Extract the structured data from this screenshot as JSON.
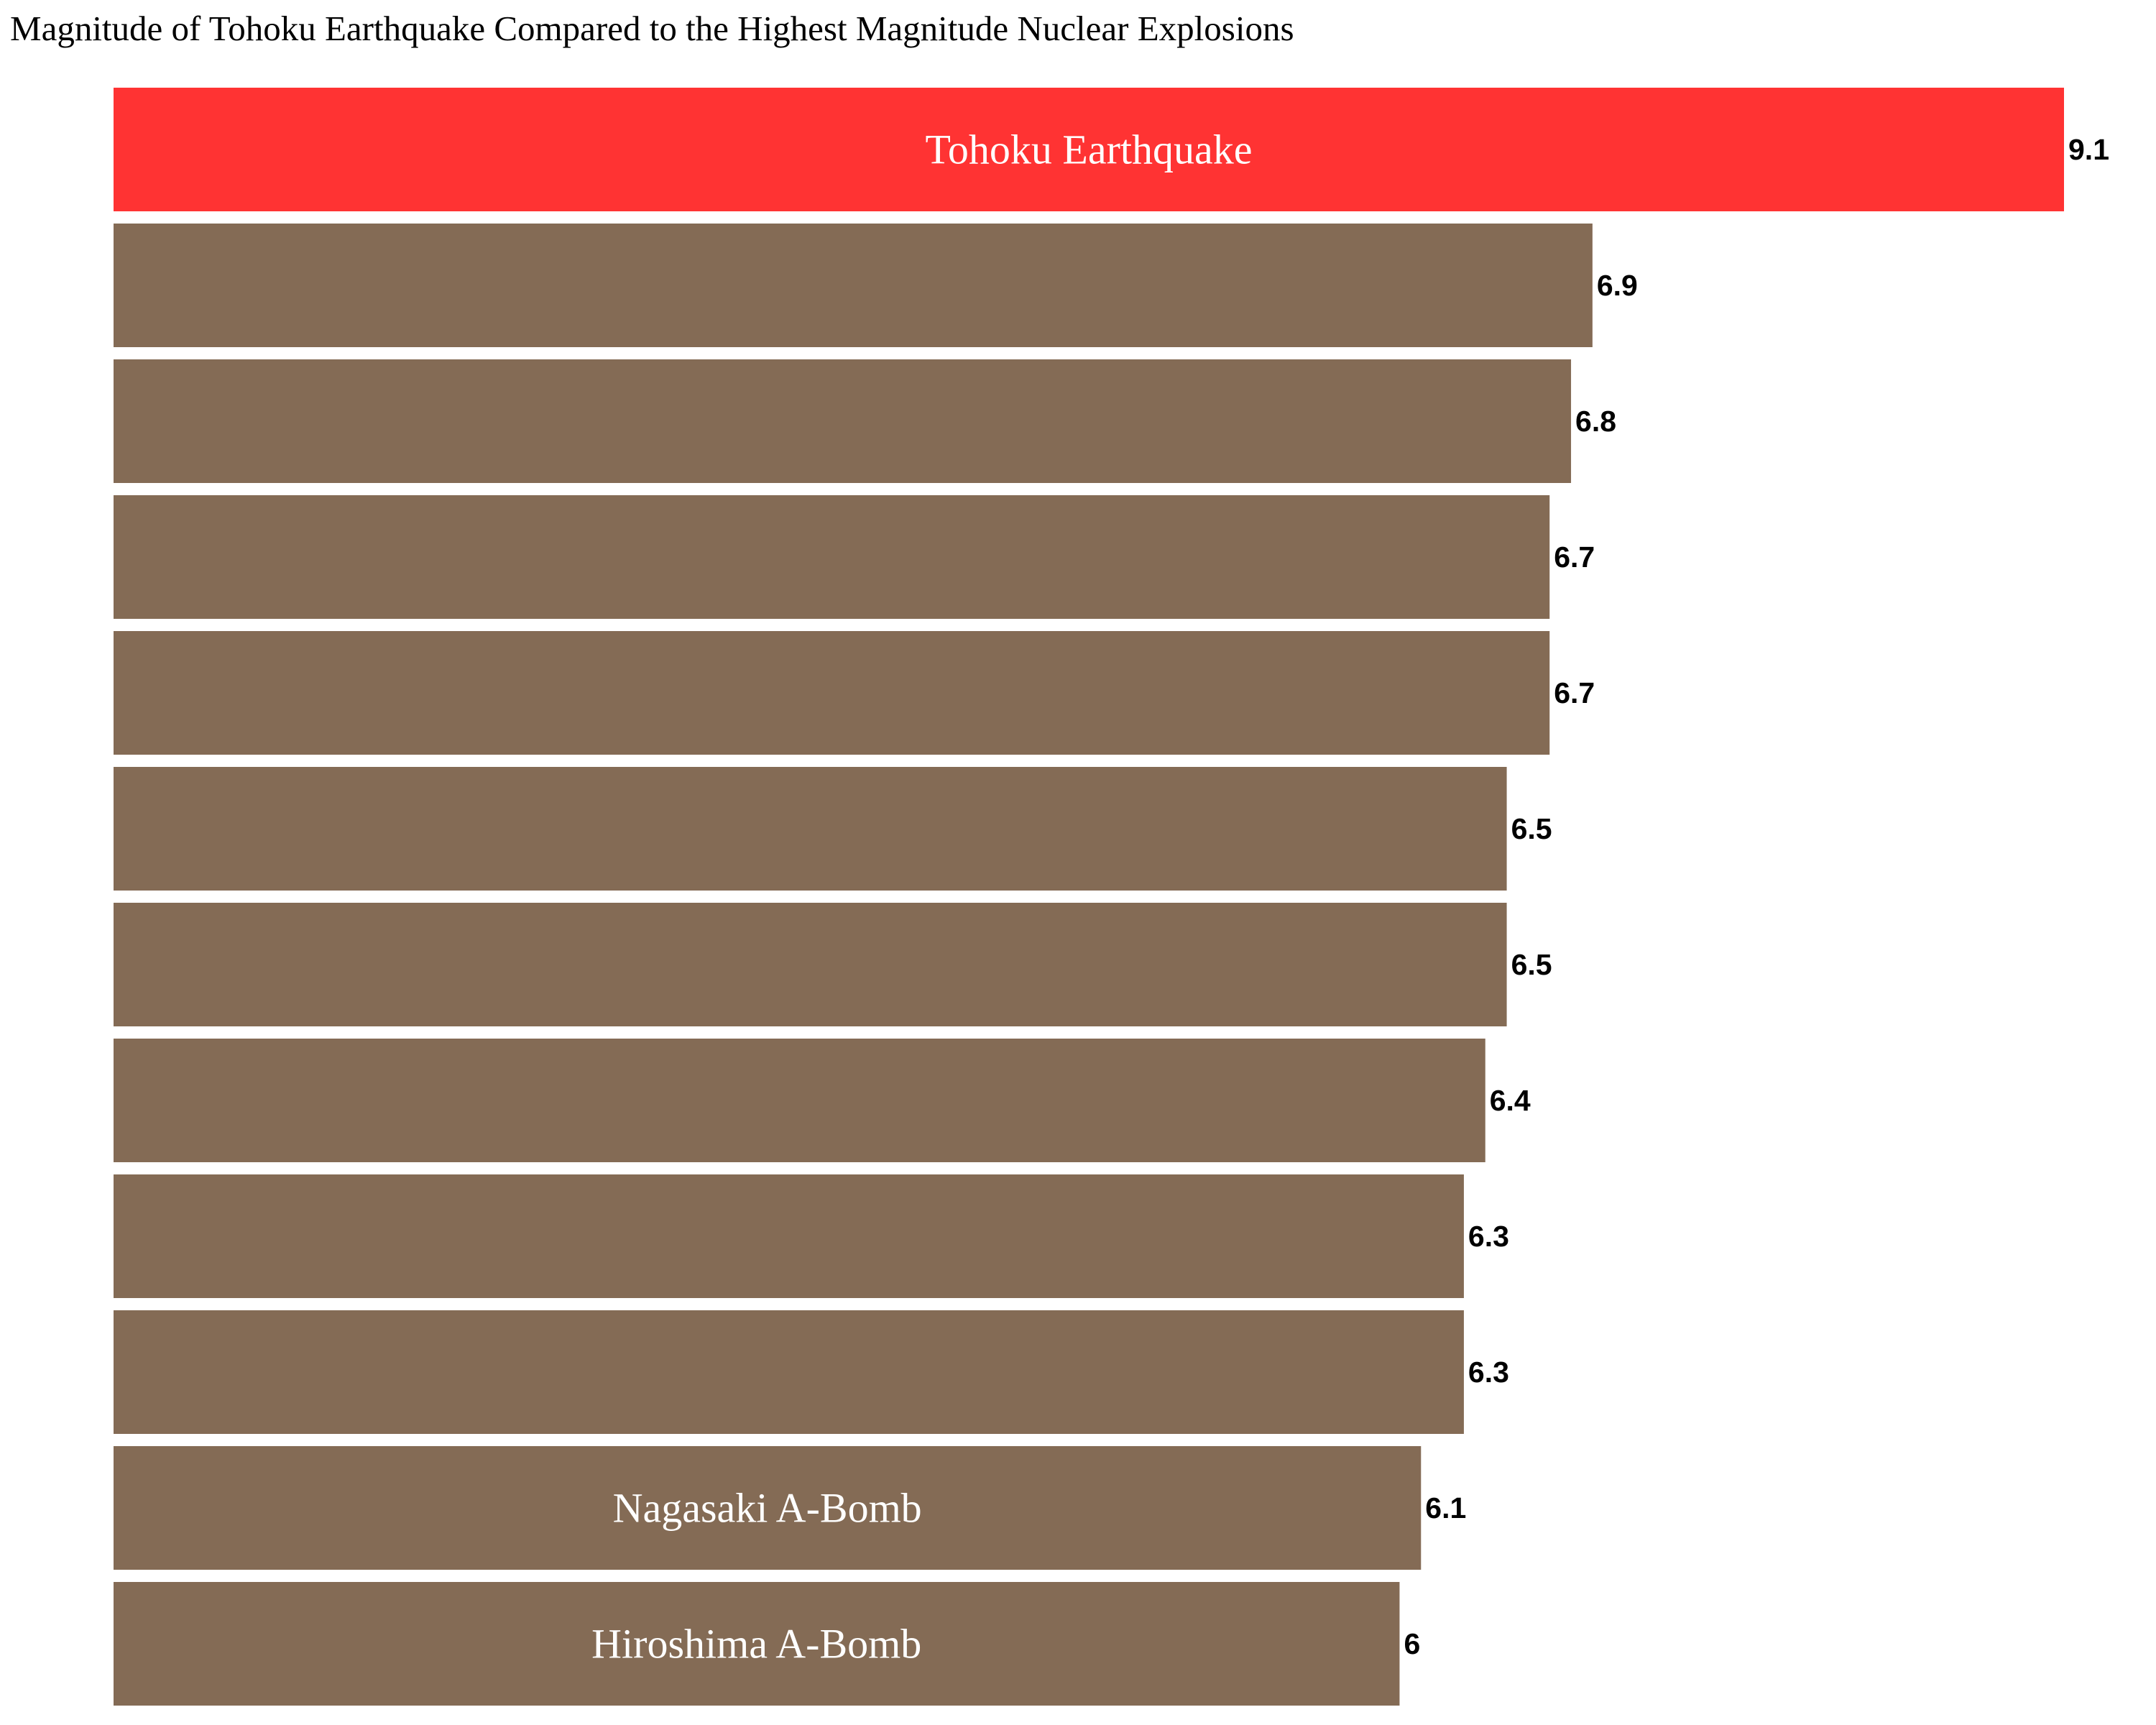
{
  "chart_data": {
    "type": "bar",
    "orientation": "horizontal",
    "title": "Magnitude of Tohoku Earthquake Compared to the Highest Magnitude Nuclear Explosions",
    "xlabel": "",
    "ylabel": "",
    "xlim": [
      0,
      9.1
    ],
    "grid": false,
    "legend": "none",
    "bars": [
      {
        "label": "Tohoku Earthquake",
        "value": 9.1,
        "value_label": "9.1",
        "color": "#ff3333"
      },
      {
        "label": "",
        "value": 6.9,
        "value_label": "6.9",
        "color": "#846b55"
      },
      {
        "label": "",
        "value": 6.8,
        "value_label": "6.8",
        "color": "#846b55"
      },
      {
        "label": "",
        "value": 6.7,
        "value_label": "6.7",
        "color": "#846b55"
      },
      {
        "label": "",
        "value": 6.7,
        "value_label": "6.7",
        "color": "#846b55"
      },
      {
        "label": "",
        "value": 6.5,
        "value_label": "6.5",
        "color": "#846b55"
      },
      {
        "label": "",
        "value": 6.5,
        "value_label": "6.5",
        "color": "#846b55"
      },
      {
        "label": "",
        "value": 6.4,
        "value_label": "6.4",
        "color": "#846b55"
      },
      {
        "label": "",
        "value": 6.3,
        "value_label": "6.3",
        "color": "#846b55"
      },
      {
        "label": "",
        "value": 6.3,
        "value_label": "6.3",
        "color": "#846b55"
      },
      {
        "label": "Nagasaki A-Bomb",
        "value": 6.1,
        "value_label": "6.1",
        "color": "#846b55"
      },
      {
        "label": "Hiroshima A-Bomb",
        "value": 6.0,
        "value_label": "6",
        "color": "#846b55"
      }
    ]
  }
}
